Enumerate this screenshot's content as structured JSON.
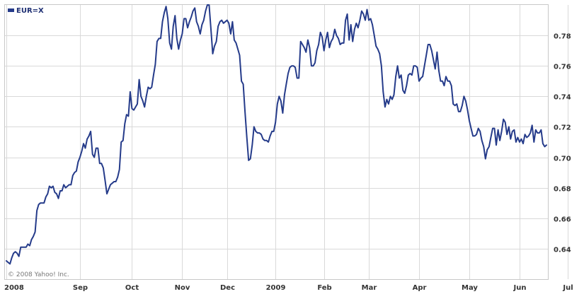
{
  "chart_data": {
    "type": "line",
    "title": "",
    "xlabel": "",
    "ylabel": "",
    "legend": {
      "label": "EUR=X",
      "placement": "top-left"
    },
    "copyright": "© 2008 Yahoo! Inc.",
    "colors": {
      "series": "#253b8a",
      "grid": "#d9d9d9",
      "background": "#ffffff"
    },
    "grid": true,
    "ylim": [
      0.62,
      0.8
    ],
    "y_ticks": [
      {
        "value": 0.64,
        "label": "0.64"
      },
      {
        "value": 0.66,
        "label": "0.66"
      },
      {
        "value": 0.68,
        "label": "0.68"
      },
      {
        "value": 0.7,
        "label": "0.70"
      },
      {
        "value": 0.72,
        "label": "0.72"
      },
      {
        "value": 0.74,
        "label": "0.74"
      },
      {
        "value": 0.76,
        "label": "0.76"
      },
      {
        "value": 0.78,
        "label": "0.78"
      }
    ],
    "x_ticks": [
      {
        "index": 0,
        "label": "2008"
      },
      {
        "index": 41,
        "label": "Sep"
      },
      {
        "index": 70,
        "label": "Oct"
      },
      {
        "index": 98,
        "label": "Nov"
      },
      {
        "index": 123,
        "label": "Dec"
      },
      {
        "index": 150,
        "label": "2009"
      },
      {
        "index": 177,
        "label": "Feb"
      },
      {
        "index": 202,
        "label": "Mar"
      },
      {
        "index": 230,
        "label": "Apr"
      },
      {
        "index": 258,
        "label": "May"
      },
      {
        "index": 286,
        "label": "Jun"
      },
      {
        "index": 313,
        "label": "Jul"
      }
    ],
    "series": [
      {
        "name": "EUR=X",
        "values": [
          0.632,
          0.631,
          0.63,
          0.634,
          0.637,
          0.638,
          0.637,
          0.635,
          0.641,
          0.641,
          0.641,
          0.641,
          0.643,
          0.642,
          0.646,
          0.648,
          0.651,
          0.665,
          0.669,
          0.67,
          0.67,
          0.67,
          0.674,
          0.676,
          0.681,
          0.68,
          0.681,
          0.677,
          0.676,
          0.673,
          0.678,
          0.678,
          0.682,
          0.68,
          0.681,
          0.682,
          0.682,
          0.688,
          0.69,
          0.691,
          0.697,
          0.7,
          0.704,
          0.709,
          0.706,
          0.712,
          0.714,
          0.717,
          0.702,
          0.7,
          0.706,
          0.706,
          0.696,
          0.696,
          0.693,
          0.685,
          0.676,
          0.679,
          0.682,
          0.683,
          0.684,
          0.684,
          0.687,
          0.692,
          0.71,
          0.711,
          0.722,
          0.728,
          0.727,
          0.743,
          0.732,
          0.731,
          0.733,
          0.735,
          0.751,
          0.74,
          0.737,
          0.733,
          0.74,
          0.746,
          0.745,
          0.746,
          0.754,
          0.761,
          0.776,
          0.778,
          0.778,
          0.789,
          0.795,
          0.799,
          0.791,
          0.775,
          0.771,
          0.786,
          0.793,
          0.778,
          0.771,
          0.777,
          0.781,
          0.791,
          0.791,
          0.785,
          0.789,
          0.792,
          0.796,
          0.798,
          0.789,
          0.786,
          0.781,
          0.787,
          0.79,
          0.796,
          0.8,
          0.8,
          0.784,
          0.768,
          0.773,
          0.776,
          0.786,
          0.789,
          0.79,
          0.788,
          0.789,
          0.79,
          0.788,
          0.781,
          0.789,
          0.777,
          0.775,
          0.771,
          0.767,
          0.75,
          0.748,
          0.73,
          0.713,
          0.698,
          0.699,
          0.708,
          0.72,
          0.717,
          0.716,
          0.716,
          0.715,
          0.712,
          0.711,
          0.711,
          0.71,
          0.714,
          0.717,
          0.717,
          0.723,
          0.735,
          0.74,
          0.737,
          0.729,
          0.741,
          0.748,
          0.755,
          0.759,
          0.76,
          0.76,
          0.759,
          0.752,
          0.752,
          0.776,
          0.774,
          0.772,
          0.769,
          0.777,
          0.772,
          0.76,
          0.76,
          0.762,
          0.77,
          0.774,
          0.782,
          0.779,
          0.77,
          0.777,
          0.782,
          0.772,
          0.776,
          0.778,
          0.784,
          0.78,
          0.778,
          0.774,
          0.775,
          0.775,
          0.79,
          0.794,
          0.777,
          0.787,
          0.776,
          0.784,
          0.788,
          0.785,
          0.79,
          0.796,
          0.794,
          0.79,
          0.797,
          0.79,
          0.791,
          0.787,
          0.78,
          0.773,
          0.771,
          0.768,
          0.76,
          0.743,
          0.733,
          0.738,
          0.735,
          0.74,
          0.738,
          0.741,
          0.753,
          0.76,
          0.752,
          0.754,
          0.744,
          0.742,
          0.747,
          0.754,
          0.755,
          0.754,
          0.76,
          0.76,
          0.759,
          0.75,
          0.752,
          0.753,
          0.76,
          0.767,
          0.774,
          0.774,
          0.77,
          0.764,
          0.758,
          0.769,
          0.757,
          0.75,
          0.75,
          0.747,
          0.753,
          0.75,
          0.75,
          0.747,
          0.735,
          0.734,
          0.735,
          0.73,
          0.73,
          0.734,
          0.74,
          0.737,
          0.731,
          0.724,
          0.719,
          0.714,
          0.714,
          0.715,
          0.719,
          0.717,
          0.711,
          0.707,
          0.699,
          0.705,
          0.707,
          0.713,
          0.719,
          0.719,
          0.708,
          0.718,
          0.711,
          0.717,
          0.725,
          0.723,
          0.715,
          0.72,
          0.712,
          0.717,
          0.718,
          0.71,
          0.713,
          0.71,
          0.712,
          0.709,
          0.715,
          0.713,
          0.714,
          0.716,
          0.721,
          0.71,
          0.718,
          0.716,
          0.716,
          0.718,
          0.709,
          0.707,
          0.708
        ]
      }
    ]
  }
}
